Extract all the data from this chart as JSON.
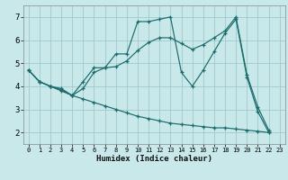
{
  "xlabel": "Humidex (Indice chaleur)",
  "bg_color": "#c8e8ea",
  "grid_color": "#a0c8cc",
  "line_color": "#1a6b6b",
  "xlim": [
    -0.5,
    23.5
  ],
  "ylim": [
    1.5,
    7.5
  ],
  "xticks": [
    0,
    1,
    2,
    3,
    4,
    5,
    6,
    7,
    8,
    9,
    10,
    11,
    12,
    13,
    14,
    15,
    16,
    17,
    18,
    19,
    20,
    21,
    22,
    23
  ],
  "yticks": [
    2,
    3,
    4,
    5,
    6,
    7
  ],
  "line1_x": [
    0,
    1,
    2,
    3,
    4,
    5,
    6,
    7,
    8,
    9,
    10,
    11,
    12,
    13,
    14,
    15,
    16,
    17,
    18,
    19,
    20,
    21,
    22
  ],
  "line1_y": [
    4.7,
    4.2,
    4.0,
    3.8,
    3.6,
    4.2,
    4.8,
    4.8,
    5.4,
    5.4,
    6.8,
    6.8,
    6.9,
    7.0,
    4.6,
    4.0,
    4.7,
    5.5,
    6.3,
    6.9,
    4.4,
    2.9,
    2.0
  ],
  "line2_x": [
    0,
    1,
    2,
    3,
    4,
    5,
    6,
    7,
    8,
    9,
    10,
    11,
    12,
    13,
    14,
    15,
    16,
    17,
    18,
    19,
    20,
    21,
    22
  ],
  "line2_y": [
    4.7,
    4.2,
    4.0,
    3.9,
    3.6,
    3.9,
    4.6,
    4.8,
    4.85,
    5.1,
    5.55,
    5.9,
    6.1,
    6.1,
    5.85,
    5.6,
    5.8,
    6.1,
    6.4,
    7.0,
    4.5,
    3.1,
    2.1
  ],
  "line3_x": [
    0,
    1,
    2,
    3,
    4,
    5,
    6,
    7,
    8,
    9,
    10,
    11,
    12,
    13,
    14,
    15,
    16,
    17,
    18,
    19,
    20,
    21,
    22
  ],
  "line3_y": [
    4.7,
    4.2,
    4.0,
    3.85,
    3.6,
    3.45,
    3.3,
    3.15,
    3.0,
    2.85,
    2.7,
    2.6,
    2.5,
    2.4,
    2.35,
    2.3,
    2.25,
    2.2,
    2.2,
    2.15,
    2.1,
    2.05,
    2.0
  ]
}
